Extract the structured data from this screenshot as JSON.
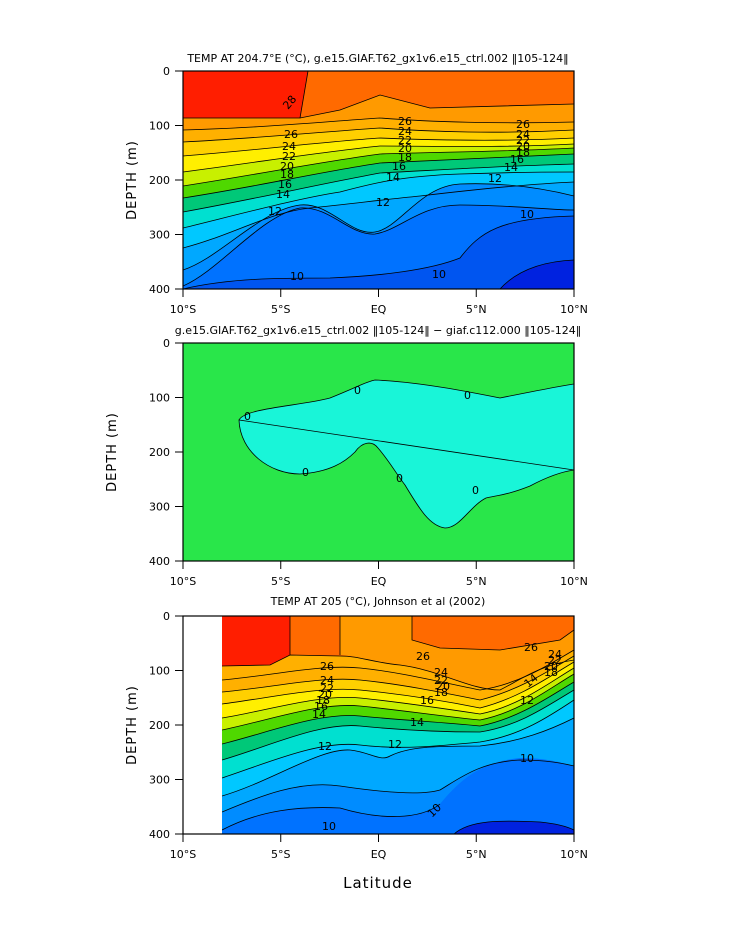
{
  "figure": {
    "xlabel": "Latitude"
  },
  "chart_data": [
    {
      "type": "heatmap",
      "title": "TEMP AT 204.7°E (°C), g.e15.GIAF.T62_gx1v6.e15_ctrl.002 ‖105-124‖",
      "ylabel": "DEPTH (m)",
      "x_ticks": [
        "10°S",
        "5°S",
        "EQ",
        "5°N",
        "10°N"
      ],
      "y_ticks": [
        "0",
        "100",
        "200",
        "300",
        "400"
      ],
      "xlim": [
        -10,
        10
      ],
      "ylim": [
        400,
        0
      ],
      "contour_labels": [
        "28",
        "26",
        "24",
        "22",
        "20",
        "18",
        "16",
        "14",
        "12",
        "10",
        "26",
        "24",
        "22",
        "20",
        "18",
        "16",
        "14",
        "12",
        "10",
        "26",
        "24",
        "22",
        "20",
        "18",
        "16",
        "14",
        "12",
        "10"
      ],
      "data_extent": [
        -10,
        10
      ]
    },
    {
      "type": "heatmap",
      "title": "g.e15.GIAF.T62_gx1v6.e15_ctrl.002 ‖105-124‖ − giaf.c112.000 ‖105-124‖",
      "ylabel": "DEPTH (m)",
      "x_ticks": [
        "10°S",
        "5°S",
        "EQ",
        "5°N",
        "10°N"
      ],
      "y_ticks": [
        "0",
        "100",
        "200",
        "300",
        "400"
      ],
      "xlim": [
        -10,
        10
      ],
      "ylim": [
        400,
        0
      ],
      "contour_labels": [
        "0",
        "0",
        "0",
        "0",
        "0",
        "0"
      ],
      "data_extent": [
        -10,
        10
      ]
    },
    {
      "type": "heatmap",
      "title": "TEMP AT 205 (°C), Johnson et al (2002)",
      "ylabel": "DEPTH (m)",
      "x_ticks": [
        "10°S",
        "5°S",
        "EQ",
        "5°N",
        "10°N"
      ],
      "y_ticks": [
        "0",
        "100",
        "200",
        "300",
        "400"
      ],
      "xlim": [
        -10,
        10
      ],
      "ylim": [
        400,
        0
      ],
      "contour_labels": [
        "26",
        "24",
        "22",
        "20",
        "18",
        "16",
        "14",
        "12",
        "10",
        "26",
        "24",
        "22",
        "20",
        "18",
        "16",
        "14",
        "12",
        "10",
        "26",
        "24",
        "22",
        "20",
        "18",
        "14",
        "12",
        "10"
      ],
      "data_extent": [
        -8,
        10
      ]
    }
  ]
}
